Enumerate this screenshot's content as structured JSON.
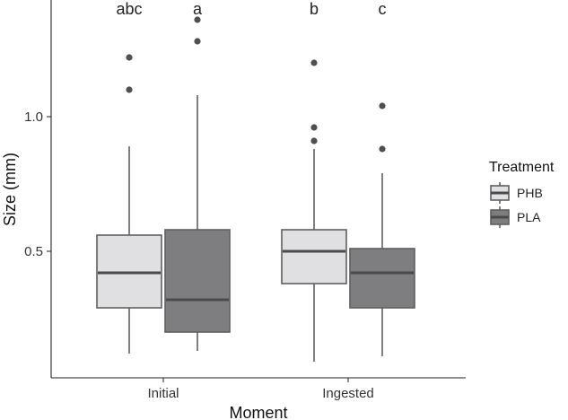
{
  "chart_data": {
    "type": "box",
    "xlabel": "Moment",
    "ylabel": "Size (mm)",
    "ylim": [
      0.0,
      1.42
    ],
    "yticks": [
      0.5,
      1.0
    ],
    "ytick_labels": [
      "0.5",
      "1.0"
    ],
    "categories": [
      "Initial",
      "Ingested"
    ],
    "legend": {
      "title": "Treatment",
      "placement": "right",
      "entries": [
        {
          "name": "PHB",
          "color": "#e0e0e2"
        },
        {
          "name": "PLA",
          "color": "#7e7e80"
        }
      ]
    },
    "series": [
      {
        "name": "PHB",
        "color": "#e0e0e2",
        "boxes": [
          {
            "category": "Initial",
            "whisker_low": 0.12,
            "q1": 0.29,
            "median": 0.42,
            "q3": 0.56,
            "whisker_high": 0.89,
            "outliers": [
              1.1,
              1.22
            ],
            "letter": "abc"
          },
          {
            "category": "Ingested",
            "whisker_low": 0.09,
            "q1": 0.38,
            "median": 0.5,
            "q3": 0.58,
            "whisker_high": 0.88,
            "outliers": [
              0.91,
              0.96,
              1.2
            ],
            "letter": "b"
          }
        ]
      },
      {
        "name": "PLA",
        "color": "#7e7e80",
        "boxes": [
          {
            "category": "Initial",
            "whisker_low": 0.13,
            "q1": 0.2,
            "median": 0.32,
            "q3": 0.58,
            "whisker_high": 1.08,
            "outliers": [
              1.28,
              1.36
            ],
            "letter": "a"
          },
          {
            "category": "Ingested",
            "whisker_low": 0.11,
            "q1": 0.29,
            "median": 0.42,
            "q3": 0.51,
            "whisker_high": 0.79,
            "outliers": [
              0.88,
              1.04
            ],
            "letter": "c"
          }
        ]
      }
    ]
  }
}
